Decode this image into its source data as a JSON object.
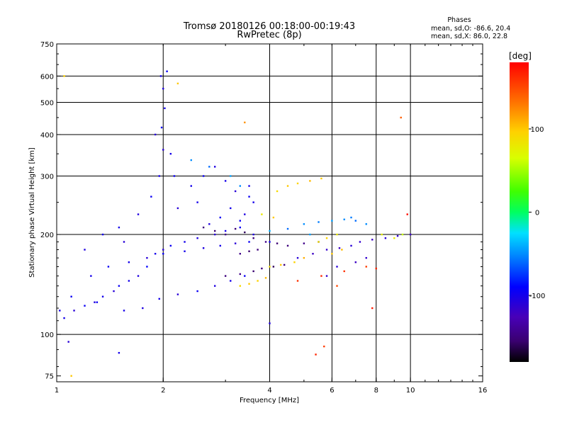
{
  "header": {
    "title": "Tromsø 20180126 00:18:00-00:19:43",
    "subtitle": "RwPretec (8p)",
    "stats_title": "Phases",
    "stats_o": "mean, sd,O: -86.6, 20.4",
    "stats_x": "mean, sd,X:  86.0, 22.8"
  },
  "colorbar": {
    "label": "[deg]",
    "ticks": [
      {
        "value": 100,
        "label": "100"
      },
      {
        "value": 0,
        "label": "0"
      },
      {
        "value": -100,
        "label": "-100"
      }
    ]
  },
  "chart_data": {
    "type": "scatter",
    "xlabel": "Frequency [MHz]",
    "ylabel": "Stationary phase Virtual Height [km]",
    "x_scale": "log",
    "y_scale": "log",
    "xlim": [
      1,
      16
    ],
    "ylim": [
      72,
      750
    ],
    "x_ticks": [
      {
        "value": 1,
        "label": "1"
      },
      {
        "value": 2,
        "label": "2"
      },
      {
        "value": 4,
        "label": "4"
      },
      {
        "value": 6,
        "label": "6"
      },
      {
        "value": 8,
        "label": "8"
      },
      {
        "value": 10,
        "label": "10"
      },
      {
        "value": 16,
        "label": "16"
      }
    ],
    "x_grid": [
      2,
      4,
      6,
      8,
      10
    ],
    "y_ticks": [
      {
        "value": 75,
        "label": "75"
      },
      {
        "value": 100,
        "label": "100"
      },
      {
        "value": 200,
        "label": "200"
      },
      {
        "value": 300,
        "label": "300"
      },
      {
        "value": 400,
        "label": "400"
      },
      {
        "value": 500,
        "label": "500"
      },
      {
        "value": 600,
        "label": "600"
      },
      {
        "value": 750,
        "label": "750"
      }
    ],
    "y_grid": [
      100,
      200,
      300,
      400,
      500,
      600
    ],
    "grid": true,
    "color_scale": {
      "label": "[deg]",
      "min": -180,
      "max": 180
    },
    "series": [
      {
        "values": [
          [
            1.05,
            112,
            -100
          ],
          [
            1.12,
            118,
            -110
          ],
          [
            1.2,
            122,
            -95
          ],
          [
            1.28,
            125,
            -105
          ],
          [
            1.35,
            130,
            -100
          ],
          [
            1.45,
            135,
            -110
          ],
          [
            1.5,
            140,
            -95
          ],
          [
            1.6,
            145,
            -100
          ],
          [
            1.7,
            150,
            -105
          ],
          [
            1.8,
            160,
            -90
          ],
          [
            1.9,
            175,
            -100
          ],
          [
            2.0,
            180,
            -110
          ],
          [
            2.1,
            185,
            -95
          ],
          [
            2.3,
            190,
            -100
          ],
          [
            2.5,
            195,
            -105
          ],
          [
            2.8,
            200,
            -110
          ],
          [
            3.0,
            205,
            -100
          ],
          [
            3.3,
            210,
            -95
          ],
          [
            3.6,
            200,
            -105
          ],
          [
            4.0,
            190,
            -100
          ],
          [
            1.3,
            125,
            -95
          ],
          [
            1.55,
            118,
            -100
          ],
          [
            1.75,
            120,
            -105
          ],
          [
            1.95,
            128,
            -100
          ],
          [
            2.2,
            132,
            -110
          ],
          [
            2.5,
            135,
            -95
          ],
          [
            2.8,
            140,
            -105
          ],
          [
            3.1,
            145,
            -100
          ],
          [
            3.4,
            150,
            -95
          ],
          [
            1.6,
            165,
            -100
          ],
          [
            1.8,
            170,
            -110
          ],
          [
            2.0,
            175,
            -95
          ],
          [
            2.3,
            178,
            -100
          ],
          [
            2.6,
            182,
            -105
          ],
          [
            2.9,
            185,
            -100
          ],
          [
            3.2,
            188,
            -110
          ],
          [
            3.5,
            190,
            -95
          ],
          [
            1.5,
            210,
            -100
          ],
          [
            1.7,
            230,
            -105
          ],
          [
            1.85,
            260,
            -95
          ],
          [
            1.95,
            300,
            -100
          ],
          [
            2.0,
            360,
            -110
          ],
          [
            1.98,
            420,
            -95
          ],
          [
            2.02,
            480,
            -100
          ],
          [
            2.0,
            550,
            -105
          ],
          [
            1.97,
            600,
            -100
          ],
          [
            2.05,
            620,
            -95
          ],
          [
            1.9,
            400,
            -110
          ],
          [
            2.1,
            350,
            -100
          ],
          [
            2.15,
            300,
            -95
          ],
          [
            2.4,
            280,
            -100
          ],
          [
            2.6,
            300,
            -95
          ],
          [
            2.8,
            320,
            -105
          ],
          [
            3.0,
            290,
            -100
          ],
          [
            3.2,
            270,
            -110
          ],
          [
            3.5,
            260,
            -95
          ],
          [
            3.6,
            250,
            -100
          ],
          [
            3.4,
            230,
            -105
          ],
          [
            3.1,
            240,
            -100
          ],
          [
            2.9,
            225,
            -95
          ],
          [
            2.2,
            240,
            -110
          ],
          [
            2.5,
            250,
            -100
          ],
          [
            2.7,
            215,
            -105
          ],
          [
            3.3,
            220,
            -95
          ],
          [
            3.5,
            280,
            -100
          ],
          [
            1.25,
            150,
            -100
          ],
          [
            1.4,
            160,
            -95
          ],
          [
            1.2,
            180,
            -105
          ],
          [
            1.35,
            200,
            -100
          ],
          [
            1.55,
            190,
            -110
          ],
          [
            1.02,
            118,
            -100
          ],
          [
            1.08,
            95,
            -110
          ],
          [
            1.5,
            88,
            -100
          ],
          [
            1.1,
            130,
            -95
          ]
        ]
      },
      {
        "values": [
          [
            2.6,
            210,
            -150
          ],
          [
            2.8,
            205,
            -155
          ],
          [
            3.0,
            200,
            -145
          ],
          [
            3.2,
            208,
            -150
          ],
          [
            3.4,
            203,
            -160
          ],
          [
            3.6,
            195,
            -150
          ],
          [
            3.9,
            190,
            -145
          ],
          [
            4.2,
            188,
            -155
          ],
          [
            3.0,
            150,
            -150
          ],
          [
            3.3,
            152,
            -145
          ],
          [
            3.6,
            155,
            -155
          ],
          [
            3.8,
            158,
            -150
          ],
          [
            4.1,
            160,
            -160
          ],
          [
            4.4,
            162,
            -150
          ],
          [
            3.3,
            175,
            -145
          ],
          [
            3.5,
            178,
            -155
          ],
          [
            3.7,
            180,
            -150
          ],
          [
            4.5,
            185,
            -150
          ],
          [
            5.0,
            188,
            -145
          ],
          [
            5.5,
            190,
            -155
          ]
        ]
      },
      {
        "values": [
          [
            3.3,
            140,
            90
          ],
          [
            3.5,
            142,
            100
          ],
          [
            3.7,
            145,
            95
          ],
          [
            3.9,
            148,
            105
          ],
          [
            4.0,
            160,
            90
          ],
          [
            4.3,
            162,
            100
          ],
          [
            4.7,
            165,
            95
          ],
          [
            5.0,
            170,
            110
          ],
          [
            4.5,
            280,
            100
          ],
          [
            4.8,
            285,
            95
          ],
          [
            5.2,
            290,
            105
          ],
          [
            5.6,
            295,
            100
          ],
          [
            4.2,
            270,
            90
          ],
          [
            3.8,
            230,
            80
          ],
          [
            4.1,
            225,
            100
          ],
          [
            5.5,
            190,
            85
          ],
          [
            5.8,
            195,
            95
          ],
          [
            6.2,
            200,
            80
          ],
          [
            8.3,
            200,
            75
          ],
          [
            9.0,
            195,
            80
          ],
          [
            9.5,
            200,
            60
          ],
          [
            6.0,
            175,
            100
          ],
          [
            6.4,
            180,
            105
          ],
          [
            2.2,
            570,
            100
          ],
          [
            9.4,
            450,
            140
          ],
          [
            3.4,
            435,
            120
          ],
          [
            1.05,
            600,
            95
          ],
          [
            1.1,
            75,
            100
          ]
        ]
      },
      {
        "values": [
          [
            5.0,
            215,
            -50
          ],
          [
            5.5,
            218,
            -55
          ],
          [
            6.0,
            220,
            -45
          ],
          [
            6.5,
            222,
            -50
          ],
          [
            7.0,
            220,
            -60
          ],
          [
            7.5,
            215,
            -50
          ],
          [
            4.0,
            205,
            -40
          ],
          [
            4.5,
            208,
            -60
          ],
          [
            5.2,
            200,
            -45
          ],
          [
            6.8,
            225,
            -55
          ],
          [
            2.4,
            335,
            -50
          ],
          [
            2.7,
            320,
            -60
          ],
          [
            3.1,
            300,
            -45
          ],
          [
            3.3,
            280,
            -50
          ]
        ]
      },
      {
        "values": [
          [
            4.8,
            170,
            -110
          ],
          [
            5.3,
            175,
            -120
          ],
          [
            5.8,
            180,
            -115
          ],
          [
            6.3,
            182,
            -120
          ],
          [
            6.8,
            185,
            -110
          ],
          [
            7.2,
            190,
            -115
          ],
          [
            7.8,
            193,
            -120
          ],
          [
            8.5,
            195,
            -110
          ],
          [
            9.2,
            198,
            -115
          ],
          [
            10.0,
            200,
            -120
          ],
          [
            4.0,
            108,
            -105
          ],
          [
            5.8,
            150,
            -115
          ],
          [
            6.2,
            160,
            -110
          ],
          [
            7.0,
            165,
            -120
          ],
          [
            7.5,
            170,
            -115
          ]
        ]
      },
      {
        "values": [
          [
            4.8,
            145,
            160
          ],
          [
            5.6,
            150,
            165
          ],
          [
            6.2,
            140,
            150
          ],
          [
            6.5,
            155,
            160
          ],
          [
            7.5,
            160,
            155
          ],
          [
            8.0,
            158,
            165
          ],
          [
            7.8,
            120,
            170
          ],
          [
            9.8,
            230,
            175
          ],
          [
            5.4,
            87,
            165
          ],
          [
            5.7,
            92,
            155
          ]
        ]
      }
    ]
  }
}
